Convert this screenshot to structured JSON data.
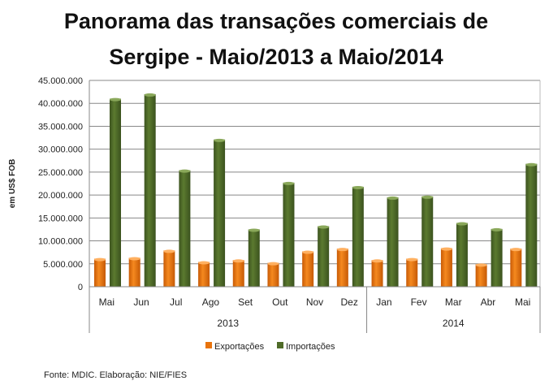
{
  "chart_data": {
    "type": "bar",
    "title": "Panorama das transações comerciais de Sergipe - Maio/2013 a Maio/2014",
    "title_lines": [
      "Panorama das transações comerciais de",
      "Sergipe - Maio/2013 a Maio/2014"
    ],
    "ylabel": "em US$ FOB",
    "xlabel": "",
    "ylim": [
      0,
      45000000
    ],
    "yticks": [
      0,
      5000000,
      10000000,
      15000000,
      20000000,
      25000000,
      30000000,
      35000000,
      40000000,
      45000000
    ],
    "ytick_labels": [
      "0",
      "5.000.000",
      "10.000.000",
      "15.000.000",
      "20.000.000",
      "25.000.000",
      "30.000.000",
      "35.000.000",
      "40.000.000",
      "45.000.000"
    ],
    "categories": [
      "Mai",
      "Jun",
      "Jul",
      "Ago",
      "Set",
      "Out",
      "Nov",
      "Dez",
      "Jan",
      "Fev",
      "Mar",
      "Abr",
      "Mai"
    ],
    "groups": [
      {
        "label": "2013",
        "count": 8
      },
      {
        "label": "2014",
        "count": 5
      }
    ],
    "grid": true,
    "legend_position": "bottom",
    "series": [
      {
        "name": "Exportações",
        "color": "#E8730C",
        "values": [
          6100000,
          6300000,
          7900000,
          5400000,
          5800000,
          5200000,
          7700000,
          8300000,
          5800000,
          6100000,
          8400000,
          4900000,
          8300000
        ]
      },
      {
        "name": "Importações",
        "color": "#4F6B28",
        "values": [
          41000000,
          42000000,
          25400000,
          32100000,
          12500000,
          22700000,
          13200000,
          21800000,
          19500000,
          19700000,
          13900000,
          12600000,
          26800000
        ]
      }
    ]
  },
  "source": "Fonte:  MDIC. Elaboração: NIE/FIES"
}
